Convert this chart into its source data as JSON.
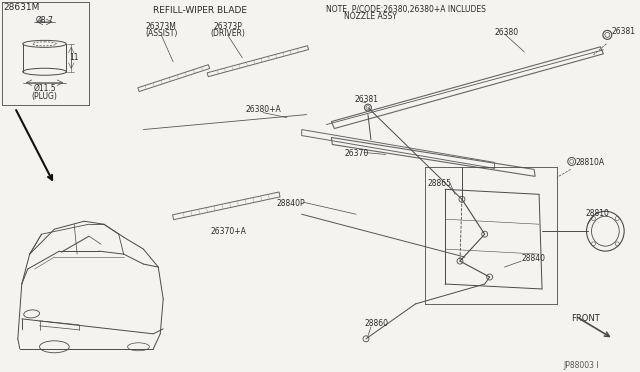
{
  "bg_color": "#f5f3ef",
  "line_color": "#4a4a4a",
  "part_number": "JP88003 I",
  "labels": {
    "plug_title": "28631M",
    "plug_d1": "Ø8.7",
    "plug_d2": "11",
    "plug_d3": "Ø11.5",
    "plug_name": "(PLUG)",
    "refill_title": "REFILL-WIPER BLADE",
    "assist": "26373M",
    "assist2": "(ASSIST)",
    "driver": "26373P",
    "driver2": "(DRIVER)",
    "note1": "NOTE, P/CODE:26380,26380+A INCLUDES",
    "note2": "NOZZLE ASSY",
    "p26380": "26380",
    "p26381a": "26381",
    "p26381b": "26381",
    "p26380A": "26380+A",
    "p26370": "26370",
    "p26370A": "26370+A",
    "p28840P": "28840P",
    "p28865": "28865",
    "p28840": "28840",
    "p28860": "28860",
    "p28810A": "28810A",
    "p28810": "28810",
    "front": "FRONT"
  }
}
